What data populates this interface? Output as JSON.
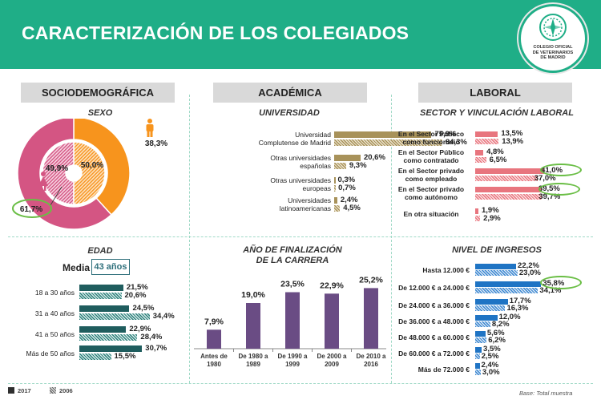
{
  "header": {
    "title": "CARACTERIZACIÓN DE LOS COLEGIADOS",
    "logo_text": [
      "COLEGIO OFICIAL",
      "DE VETERINARIOS",
      "DE MADRID"
    ]
  },
  "sections": {
    "socio": "SOCIODEMOGRÁFICA",
    "academica": "ACADÉMICA",
    "laboral": "LABORAL"
  },
  "subtitles": {
    "sexo": "SEXO",
    "universidad": "UNIVERSIDAD",
    "sector": "SECTOR Y VINCULACIÓN LABORAL",
    "edad": "EDAD",
    "anio_1": "AÑO DE FINALIZACIÓN",
    "anio_2": "DE LA CARRERA",
    "ingresos": "NIVEL DE INGRESOS"
  },
  "media": {
    "label": "Media",
    "value": "43 años"
  },
  "legend": {
    "y2017": "2017",
    "y2006": "2006"
  },
  "footnote": "Base: Total muestra",
  "colors": {
    "banner": "#1fae87",
    "male": "#f7941d",
    "female": "#d45583",
    "university": "#a8925a",
    "labor": "#e8757e",
    "age": "#1f5d5e",
    "year": "#6a4c84",
    "income": "#1f74c4",
    "highlight": "#6abe45"
  },
  "chart_data": [
    {
      "type": "pie",
      "title": "SEXO",
      "series": [
        {
          "name": "2017",
          "values": [
            38.3,
            61.7
          ],
          "labels": [
            "38,3%",
            "61,7%"
          ]
        },
        {
          "name": "2006",
          "values": [
            50.0,
            49.9
          ],
          "labels": [
            "50,0%",
            "49,9%"
          ]
        }
      ],
      "categories": [
        "hombres",
        "mujeres"
      ],
      "icons": [
        "male-icon",
        "female-icon"
      ]
    },
    {
      "type": "bar",
      "title": "UNIVERSIDAD",
      "categories": [
        [
          "Universidad",
          "Complutense de Madrid"
        ],
        [
          "Otras universidades",
          "españolas"
        ],
        [
          "Otras universidades",
          "europeas"
        ],
        [
          "Universidades",
          "latinoamericanas"
        ]
      ],
      "series": [
        {
          "name": "2017",
          "values": [
            75.9,
            20.6,
            0.3,
            2.4
          ],
          "labels": [
            "75,9%",
            "20,6%",
            "0,3%",
            "2,4%"
          ]
        },
        {
          "name": "2006",
          "values": [
            84.3,
            9.3,
            0.7,
            4.5
          ],
          "labels": [
            "84,3%",
            "9,3%",
            "0,7%",
            "4,5%"
          ]
        }
      ]
    },
    {
      "type": "bar",
      "title": "SECTOR Y VINCULACIÓN LABORAL",
      "categories": [
        [
          "En el Sector Público",
          "como funcionario"
        ],
        [
          "En el Sector Público",
          "como contratado"
        ],
        [
          "En el Sector privado",
          "como empleado"
        ],
        [
          "En el Sector privado",
          "como autónomo"
        ],
        [
          "En otra situación"
        ]
      ],
      "series": [
        {
          "name": "2017",
          "values": [
            13.5,
            4.8,
            41.0,
            39.5,
            1.9
          ],
          "labels": [
            "13,5%",
            "4,8%",
            "41,0%",
            "39,5%",
            "1,9%"
          ]
        },
        {
          "name": "2006",
          "values": [
            13.9,
            6.5,
            37.0,
            39.7,
            2.9
          ],
          "labels": [
            "13,9%",
            "6,5%",
            "37,0%",
            "39,7%",
            "2,9%"
          ]
        }
      ]
    },
    {
      "type": "bar",
      "title": "EDAD",
      "categories": [
        "18 a 30 años",
        "31 a 40 años",
        "41 a 50 años",
        "Más de 50 años"
      ],
      "series": [
        {
          "name": "2017",
          "values": [
            21.5,
            24.5,
            22.9,
            30.7
          ],
          "labels": [
            "21,5%",
            "24,5%",
            "22,9%",
            "30,7%"
          ]
        },
        {
          "name": "2006",
          "values": [
            20.6,
            34.4,
            28.4,
            15.5
          ],
          "labels": [
            "20,6%",
            "34,4%",
            "28,4%",
            "15,5%"
          ]
        }
      ]
    },
    {
      "type": "bar",
      "title": "AÑO DE FINALIZACIÓN DE LA CARRERA",
      "categories": [
        [
          "Antes de",
          "1980"
        ],
        [
          "De 1980 a",
          "1989"
        ],
        [
          "De 1990 a",
          "1999"
        ],
        [
          "De 2000 a",
          "2009"
        ],
        [
          "De 2010 a",
          "2016"
        ]
      ],
      "values": [
        7.9,
        19.0,
        23.5,
        22.9,
        25.2
      ],
      "labels": [
        "7,9%",
        "19,0%",
        "23,5%",
        "22,9%",
        "25,2%"
      ]
    },
    {
      "type": "bar",
      "title": "NIVEL DE INGRESOS",
      "categories": [
        "Hasta 12.000 €",
        "De 12.000 € a 24.000 €",
        "De 24.000 € a 36.000 €",
        "De 36.000 € a 48.000 €",
        "De 48.000 € a 60.000 €",
        "De 60.000 € a 72.000 €",
        "Más de 72.000 €"
      ],
      "series": [
        {
          "name": "2017",
          "values": [
            22.2,
            35.8,
            17.7,
            12.0,
            5.6,
            3.5,
            2.4
          ],
          "labels": [
            "22,2%",
            "35,8%",
            "17,7%",
            "12,0%",
            "5,6%",
            "3,5%",
            "2,4%"
          ]
        },
        {
          "name": "2006",
          "values": [
            23.0,
            34.1,
            16.3,
            8.2,
            6.2,
            2.5,
            3.0
          ],
          "labels": [
            "23,0%",
            "34,1%",
            "16,3%",
            "8,2%",
            "6,2%",
            "2,5%",
            "3,0%"
          ]
        }
      ]
    }
  ]
}
